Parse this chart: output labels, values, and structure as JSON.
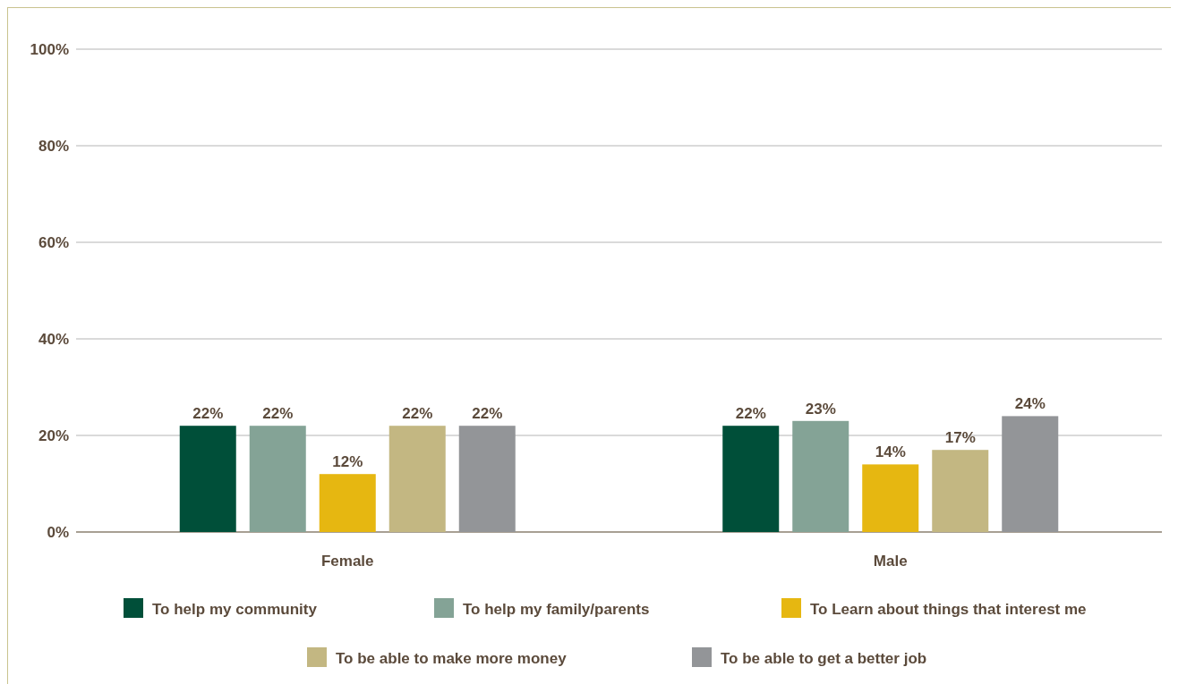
{
  "chart_data": {
    "type": "bar",
    "categories": [
      "Female",
      "Male"
    ],
    "series": [
      {
        "name": "To help my community",
        "color": "#004f39",
        "values": [
          22,
          22
        ]
      },
      {
        "name": "To help my family/parents",
        "color": "#84a396",
        "values": [
          22,
          23
        ]
      },
      {
        "name": "To Learn about things that interest me",
        "color": "#e6b711",
        "values": [
          12,
          14
        ]
      },
      {
        "name": "To be able to make more money",
        "color": "#c3b782",
        "values": [
          22,
          17
        ]
      },
      {
        "name": "To be able to get a better job",
        "color": "#939598",
        "values": [
          22,
          24
        ]
      }
    ],
    "ylim": [
      0,
      100
    ],
    "yticks": [
      {
        "value": 0,
        "label": "0%"
      },
      {
        "value": 20,
        "label": "20%"
      },
      {
        "value": 40,
        "label": "40%"
      },
      {
        "value": 60,
        "label": "60%"
      },
      {
        "value": 80,
        "label": "80%"
      },
      {
        "value": 100,
        "label": "100%"
      }
    ],
    "grid": "y",
    "legend": "bottom",
    "value_labels": [
      [
        "22%",
        "22%"
      ],
      [
        "22%",
        "23%"
      ],
      [
        "12%",
        "14%"
      ],
      [
        "22%",
        "17%"
      ],
      [
        "22%",
        "24%"
      ]
    ]
  }
}
